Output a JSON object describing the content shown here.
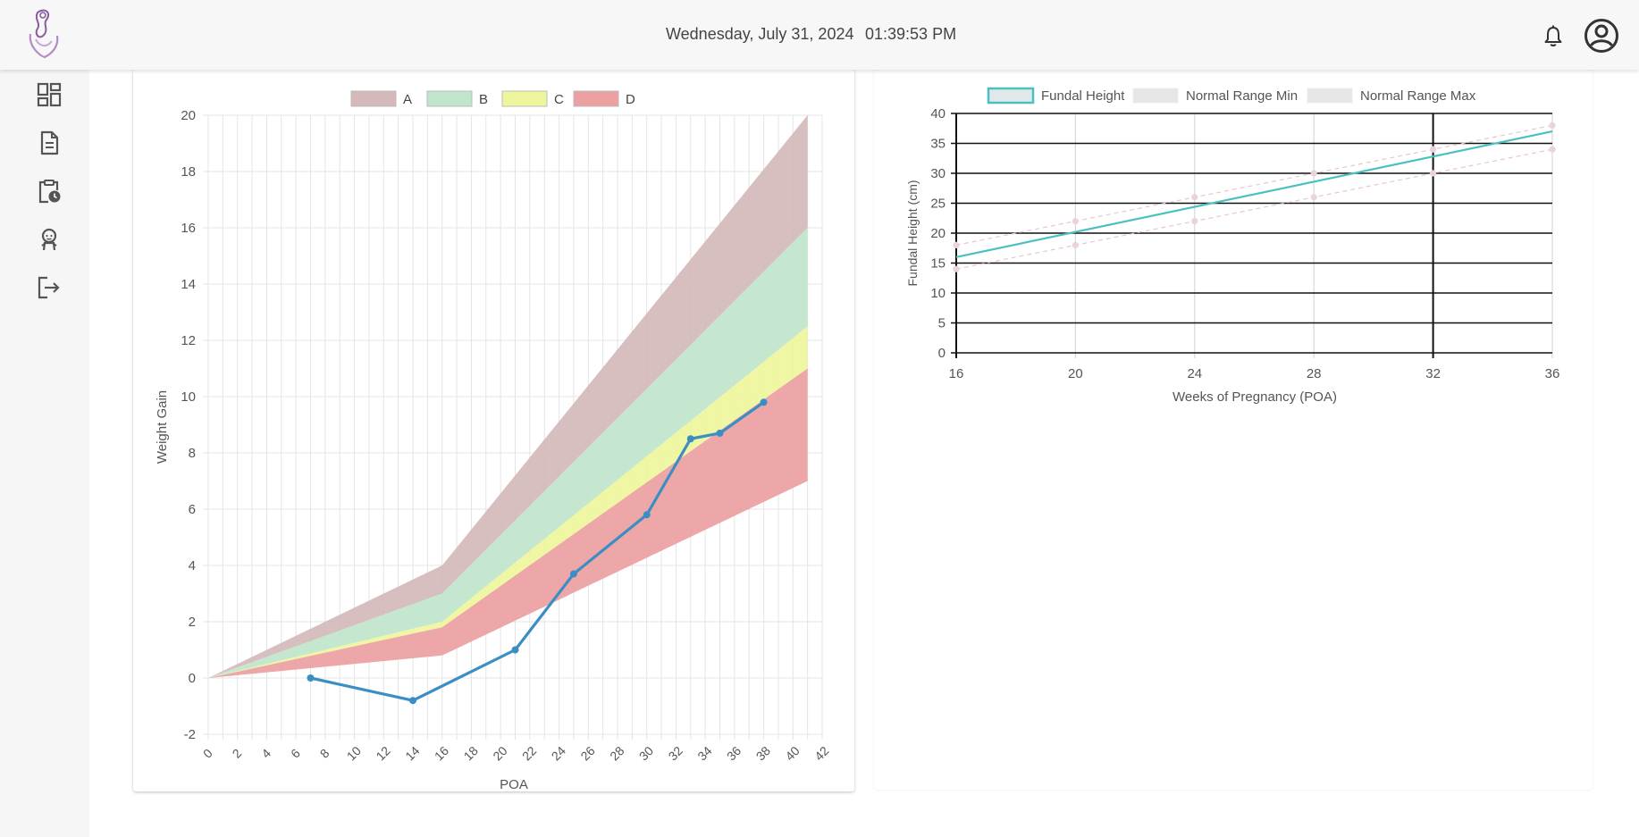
{
  "header": {
    "date": "Wednesday, July 31, 2024",
    "time": "01:39:53 PM",
    "logo_icon": "mother-baby-logo-icon",
    "notification_icon": "bell-icon",
    "account_icon": "user-circle-icon"
  },
  "sidebar": {
    "items": [
      {
        "icon": "dashboard-icon"
      },
      {
        "icon": "document-icon"
      },
      {
        "icon": "clipboard-clock-icon"
      },
      {
        "icon": "baby-icon"
      },
      {
        "icon": "logout-icon"
      }
    ]
  },
  "charts": {
    "weight": {
      "legend": [
        "A",
        "B",
        "C",
        "D"
      ],
      "xlabel": "POA",
      "ylabel": "Weight Gain"
    },
    "fundal": {
      "legend": [
        "Fundal Height",
        "Normal Range Min",
        "Normal Range Max"
      ],
      "xlabel": "Weeks of Pregnancy (POA)",
      "ylabel": "Fundal Height (cm)"
    }
  },
  "chart_data": [
    {
      "type": "line",
      "xlabel": "POA",
      "ylabel": "Weight Gain",
      "xlim": [
        0,
        42
      ],
      "ylim": [
        -2,
        20
      ],
      "xticks": [
        0,
        2,
        4,
        6,
        8,
        10,
        12,
        14,
        16,
        18,
        20,
        22,
        24,
        26,
        28,
        30,
        32,
        34,
        36,
        38,
        40,
        42
      ],
      "yticks": [
        -2,
        0,
        2,
        4,
        6,
        8,
        10,
        12,
        14,
        16,
        18,
        20
      ],
      "grid": true,
      "legend_position": "top",
      "bands": [
        {
          "name": "A",
          "color": "#d4b8ba",
          "x": [
            0,
            16,
            41
          ],
          "upper": [
            0,
            4,
            20
          ],
          "lower": [
            0,
            3,
            16
          ]
        },
        {
          "name": "B",
          "color": "#c0e5cb",
          "x": [
            0,
            16,
            41
          ],
          "upper": [
            0,
            3,
            16
          ],
          "lower": [
            0,
            2,
            12.5
          ]
        },
        {
          "name": "C",
          "color": "#eef59c",
          "x": [
            0,
            16,
            41
          ],
          "upper": [
            0,
            2,
            12.5
          ],
          "lower": [
            0,
            1.8,
            11
          ]
        },
        {
          "name": "D",
          "color": "#eca0a2",
          "x": [
            0,
            16,
            41
          ],
          "upper": [
            0,
            1.8,
            11
          ],
          "lower": [
            0,
            0.8,
            7
          ]
        }
      ],
      "series": [
        {
          "color": "#3b8ec4",
          "x": [
            7,
            14,
            21,
            25,
            30,
            33,
            35,
            38
          ],
          "y": [
            0,
            -0.8,
            1,
            3.7,
            5.8,
            8.5,
            8.7,
            9.8
          ]
        }
      ]
    },
    {
      "type": "line",
      "xlabel": "Weeks of Pregnancy (POA)",
      "ylabel": "Fundal Height (cm)",
      "xlim": [
        16,
        36
      ],
      "ylim": [
        0,
        40
      ],
      "xticks": [
        16,
        20,
        24,
        28,
        32,
        36
      ],
      "yticks": [
        0,
        5,
        10,
        15,
        20,
        25,
        30,
        35,
        40
      ],
      "grid": true,
      "legend_position": "top",
      "series": [
        {
          "name": "Fundal Height",
          "color": "#4bc0c0",
          "x": [
            16,
            36
          ],
          "y": [
            16,
            37
          ]
        },
        {
          "name": "Normal Range Min",
          "color": "#e8c6cf",
          "x": [
            16,
            20,
            24,
            28,
            32,
            36
          ],
          "y": [
            14,
            18,
            22,
            26,
            30,
            34
          ]
        },
        {
          "name": "Normal Range Max",
          "color": "#e8c6cf",
          "x": [
            16,
            20,
            24,
            28,
            32,
            36
          ],
          "y": [
            18,
            22,
            26,
            30,
            34,
            38
          ]
        }
      ]
    }
  ]
}
